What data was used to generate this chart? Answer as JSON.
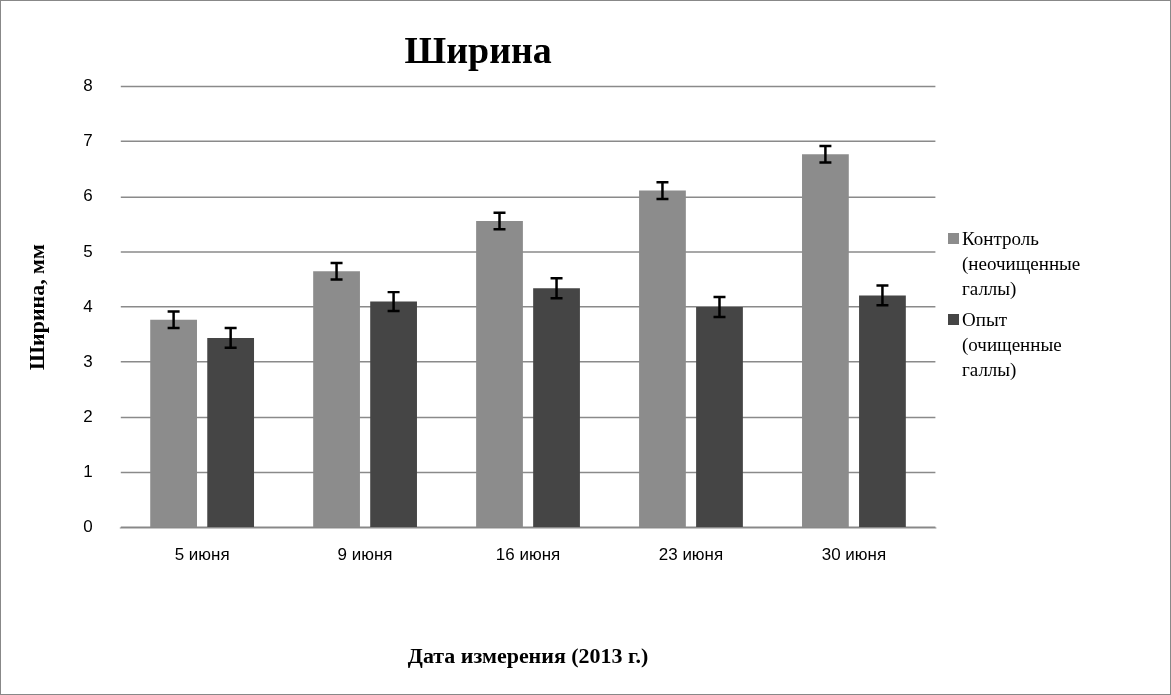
{
  "chart_data": {
    "type": "bar",
    "title": "Ширина",
    "xlabel": "Дата измерения (2013 г.)",
    "ylabel": "Ширина, мм",
    "categories": [
      "5 июня",
      "9 июня",
      "16 июня",
      "23 июня",
      "30 июня"
    ],
    "series": [
      {
        "name": "Контроль (неочищенные галлы)",
        "color": "#8c8c8c",
        "values": [
          3.77,
          4.65,
          5.56,
          6.11,
          6.77
        ],
        "errors": [
          0.15,
          0.15,
          0.15,
          0.15,
          0.15
        ]
      },
      {
        "name": "Опыт (очищенные галлы)",
        "color": "#454545",
        "values": [
          3.44,
          4.1,
          4.34,
          4.0,
          4.21
        ],
        "errors": [
          0.18,
          0.17,
          0.18,
          0.18,
          0.18
        ]
      }
    ],
    "ylim": [
      0,
      8
    ],
    "yticks": [
      0,
      1,
      2,
      3,
      4,
      5,
      6,
      7,
      8
    ],
    "grid": "y",
    "legend": "right"
  }
}
